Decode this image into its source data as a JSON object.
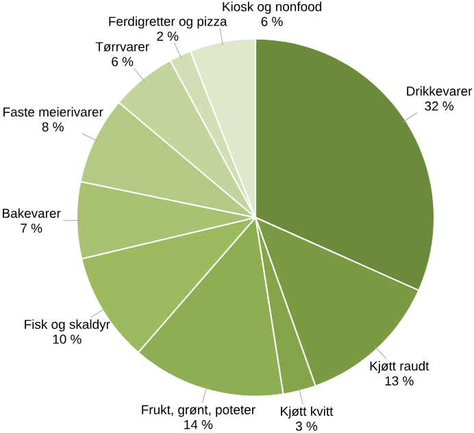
{
  "chart_data": {
    "type": "pie",
    "categories": [
      "Drikkevarer",
      "Kjøtt raudt",
      "Kjøtt kvitt",
      "Frukt, grønt, poteter",
      "Fisk og skaldyr",
      "Bakevarer",
      "Faste meierivarer",
      "Tørrvarer",
      "Ferdigretter og pizza",
      "Kiosk og nonfood"
    ],
    "values": [
      32,
      13,
      3,
      14,
      10,
      7,
      8,
      6,
      2,
      6
    ],
    "value_labels": [
      "32 %",
      "13 %",
      "3 %",
      "14 %",
      "10 %",
      "7 %",
      "8 %",
      "6 %",
      "2 %",
      "6 %"
    ],
    "colors": [
      "#6b8a3c",
      "#7a9a43",
      "#86a54b",
      "#8fad52",
      "#9dba5e",
      "#a8c172",
      "#b4ca84",
      "#c3d59d",
      "#d2deb4",
      "#e0e8cc"
    ]
  }
}
